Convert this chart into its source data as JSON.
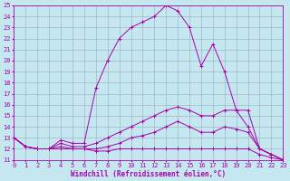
{
  "xlabel": "Windchill (Refroidissement éolien,°C)",
  "bg_color": "#c5e8f0",
  "line_color": "#aa00aa",
  "grid_color": "#99aabb",
  "xmin": 0,
  "xmax": 23,
  "ymin": 11,
  "ymax": 25,
  "series": [
    [
      13,
      12.2,
      12,
      12,
      12.8,
      12.5,
      12.5,
      17.5,
      20,
      22,
      23,
      23.5,
      24,
      25,
      24.5,
      23,
      19.5,
      21.5,
      19,
      15.5,
      14,
      12,
      11.5,
      11
    ],
    [
      13,
      12.2,
      12,
      12,
      12.5,
      12.2,
      12.2,
      12.5,
      13,
      13.5,
      14,
      14.5,
      15,
      15.5,
      15.8,
      15.5,
      15,
      15,
      15.5,
      15.5,
      15.5,
      12,
      11.5,
      11
    ],
    [
      13,
      12.2,
      12,
      12,
      12.2,
      12,
      12,
      12,
      12.2,
      12.5,
      13,
      13.2,
      13.5,
      14,
      14.5,
      14,
      13.5,
      13.5,
      14,
      13.8,
      13.5,
      12,
      11.5,
      11
    ],
    [
      13,
      12.2,
      12,
      12,
      12,
      12,
      12,
      11.8,
      11.8,
      12,
      12,
      12,
      12,
      12,
      12,
      12,
      12,
      12,
      12,
      12,
      12,
      11.5,
      11.2,
      11
    ]
  ],
  "xlabel_fontsize": 5.5,
  "tick_fontsize": 5,
  "linewidth": 0.7,
  "markersize": 2.5
}
